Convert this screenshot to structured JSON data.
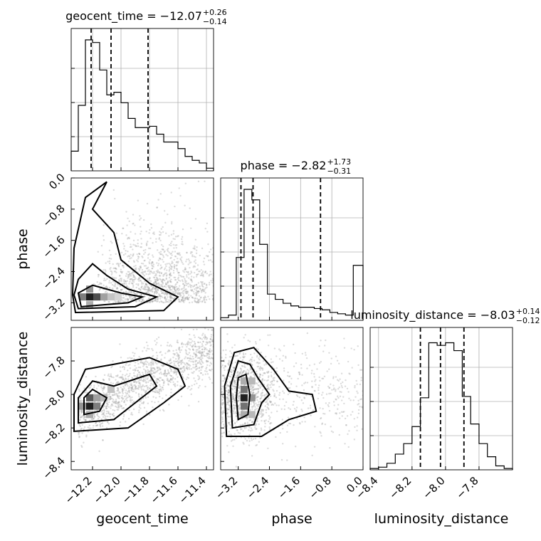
{
  "chart_data": {
    "type": "corner",
    "parameters": [
      "geocent_time",
      "phase",
      "luminosity_distance"
    ],
    "titles": [
      {
        "param": "geocent_time",
        "main": "geocent_time = −12.07",
        "upper": "+0.26",
        "lower": "−0.14"
      },
      {
        "param": "phase",
        "main": "phase = −2.82",
        "upper": "+1.73",
        "lower": "−0.31"
      },
      {
        "param": "luminosity_distance",
        "main": "luminosity_distance = −8.03",
        "upper": "+0.14",
        "lower": "−0.12"
      }
    ],
    "axis_labels": {
      "x": [
        "geocent_time",
        "phase",
        "luminosity_distance"
      ],
      "y": [
        "phase",
        "luminosity_distance"
      ]
    },
    "ranges": {
      "geocent_time": [
        -12.35,
        -11.35
      ],
      "phase": [
        -3.65,
        0.0
      ],
      "luminosity_distance": [
        -8.45,
        -7.6
      ]
    },
    "ticks": {
      "geocent_time": [
        {
          "v": -12.2,
          "label": "−12.2"
        },
        {
          "v": -12.0,
          "label": "−12.0"
        },
        {
          "v": -11.8,
          "label": "−11.8"
        },
        {
          "v": -11.6,
          "label": "−11.6"
        },
        {
          "v": -11.4,
          "label": "−11.4"
        }
      ],
      "phase": [
        {
          "v": -3.2,
          "label": "−3.2"
        },
        {
          "v": -2.4,
          "label": "−2.4"
        },
        {
          "v": -1.6,
          "label": "−1.6"
        },
        {
          "v": -0.8,
          "label": "−0.8"
        },
        {
          "v": 0.0,
          "label": "0.0"
        }
      ],
      "luminosity_distance": [
        {
          "v": -8.4,
          "label": "−8.4"
        },
        {
          "v": -8.2,
          "label": "−8.2"
        },
        {
          "v": -8.0,
          "label": "−8.0"
        },
        {
          "v": -7.8,
          "label": "−7.8"
        }
      ]
    },
    "quantiles": {
      "geocent_time": [
        -12.21,
        -12.07,
        -11.81
      ],
      "phase": [
        -3.13,
        -2.82,
        -1.09
      ],
      "luminosity_distance": [
        -8.15,
        -8.03,
        -7.89
      ]
    },
    "histograms": {
      "geocent_time": {
        "edges": [
          -12.35,
          -12.3,
          -12.25,
          -12.2,
          -12.15,
          -12.1,
          -12.05,
          -12.0,
          -11.95,
          -11.9,
          -11.85,
          -11.8,
          -11.75,
          -11.7,
          -11.65,
          -11.6,
          -11.55,
          -11.5,
          -11.45,
          -11.4,
          -11.35
        ],
        "counts": [
          0.15,
          0.5,
          1.0,
          0.98,
          0.77,
          0.58,
          0.6,
          0.52,
          0.4,
          0.33,
          0.33,
          0.34,
          0.28,
          0.22,
          0.22,
          0.17,
          0.11,
          0.08,
          0.06,
          0.02
        ]
      },
      "phase": {
        "edges": [
          -3.65,
          -3.45,
          -3.25,
          -3.05,
          -2.85,
          -2.65,
          -2.45,
          -2.25,
          -2.05,
          -1.85,
          -1.65,
          -1.45,
          -1.25,
          -1.05,
          -0.85,
          -0.65,
          -0.45,
          -0.25,
          -0.05,
          0.0
        ],
        "counts": [
          0.02,
          0.04,
          0.48,
          1.0,
          0.92,
          0.58,
          0.2,
          0.16,
          0.13,
          0.11,
          0.1,
          0.1,
          0.09,
          0.08,
          0.06,
          0.05,
          0.04,
          0.42,
          0.42
        ]
      },
      "luminosity_distance": {
        "edges": [
          -8.45,
          -8.4,
          -8.35,
          -8.3,
          -8.25,
          -8.2,
          -8.15,
          -8.1,
          -8.05,
          -8.0,
          -7.95,
          -7.9,
          -7.85,
          -7.8,
          -7.75,
          -7.7,
          -7.65,
          -7.6
        ],
        "counts": [
          0.01,
          0.02,
          0.05,
          0.12,
          0.2,
          0.33,
          0.55,
          0.97,
          0.95,
          0.97,
          0.91,
          0.56,
          0.35,
          0.2,
          0.1,
          0.03,
          0.01
        ]
      }
    }
  }
}
